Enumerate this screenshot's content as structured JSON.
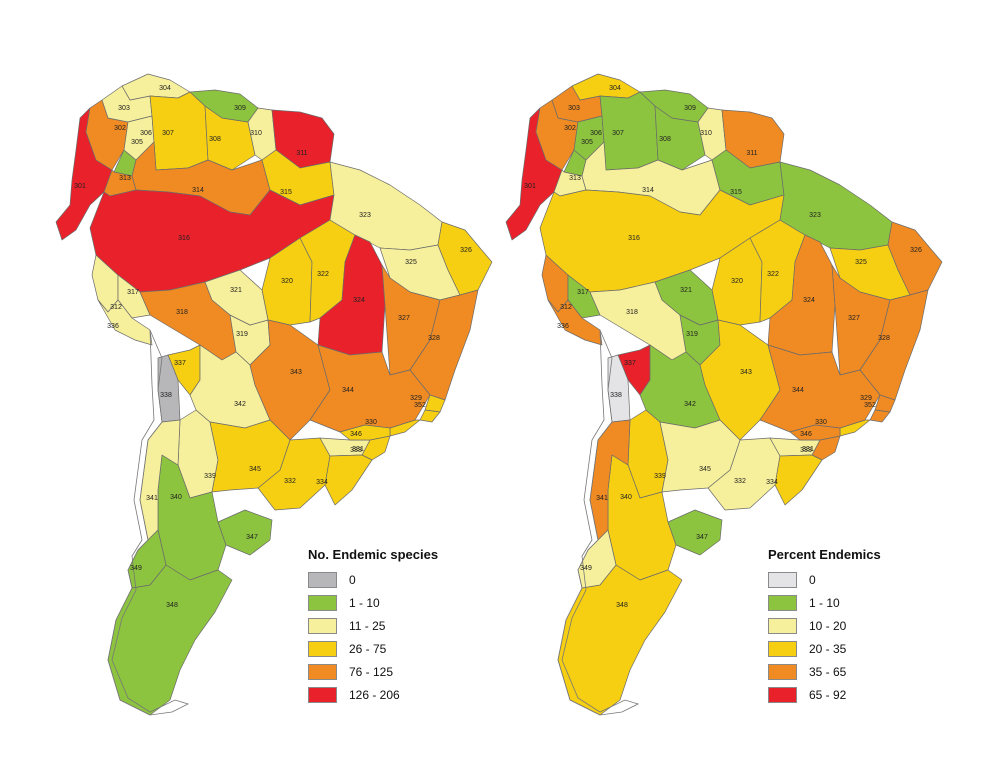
{
  "colors": {
    "grey": "#b7b7b9",
    "lightgrey": "#e4e4e6",
    "green": "#8cc43f",
    "lightyellow": "#f6ef9b",
    "yellow": "#f6cf12",
    "orange": "#f08a22",
    "red": "#e8212a"
  },
  "map_left": {
    "legend": {
      "title": "No. Endemic species",
      "items": [
        {
          "label": "0",
          "color": "#b7b7b9"
        },
        {
          "label": "1 - 10",
          "color": "#8cc43f"
        },
        {
          "label": "11 - 25",
          "color": "#f6ef9b"
        },
        {
          "label": "26 - 75",
          "color": "#f6cf12"
        },
        {
          "label": "76 - 125",
          "color": "#f08a22"
        },
        {
          "label": "126 - 206",
          "color": "#e8212a"
        }
      ]
    },
    "regions": [
      {
        "id": "301",
        "class": "red"
      },
      {
        "id": "302",
        "class": "orange"
      },
      {
        "id": "303",
        "class": "lightyellow"
      },
      {
        "id": "304",
        "class": "lightyellow"
      },
      {
        "id": "305",
        "class": "green"
      },
      {
        "id": "306",
        "class": "lightyellow"
      },
      {
        "id": "307",
        "class": "yellow"
      },
      {
        "id": "308",
        "class": "yellow"
      },
      {
        "id": "309",
        "class": "green"
      },
      {
        "id": "310",
        "class": "lightyellow"
      },
      {
        "id": "311",
        "class": "red"
      },
      {
        "id": "312",
        "class": "lightyellow"
      },
      {
        "id": "313",
        "class": "orange"
      },
      {
        "id": "314",
        "class": "orange"
      },
      {
        "id": "315",
        "class": "yellow"
      },
      {
        "id": "316",
        "class": "red"
      },
      {
        "id": "317",
        "class": "lightyellow"
      },
      {
        "id": "318",
        "class": "orange"
      },
      {
        "id": "319",
        "class": "lightyellow"
      },
      {
        "id": "320",
        "class": "yellow"
      },
      {
        "id": "321",
        "class": "lightyellow"
      },
      {
        "id": "322",
        "class": "yellow"
      },
      {
        "id": "323",
        "class": "lightyellow"
      },
      {
        "id": "324",
        "class": "red"
      },
      {
        "id": "325",
        "class": "lightyellow"
      },
      {
        "id": "326",
        "class": "yellow"
      },
      {
        "id": "327",
        "class": "orange"
      },
      {
        "id": "328",
        "class": "orange"
      },
      {
        "id": "329",
        "class": "yellow"
      },
      {
        "id": "330",
        "class": "yellow"
      },
      {
        "id": "331",
        "class": "yellow"
      },
      {
        "id": "332",
        "class": "yellow"
      },
      {
        "id": "333",
        "class": "lightyellow"
      },
      {
        "id": "334",
        "class": "yellow"
      },
      {
        "id": "336",
        "class": "lightyellow"
      },
      {
        "id": "337",
        "class": "yellow"
      },
      {
        "id": "338",
        "class": "grey"
      },
      {
        "id": "339",
        "class": "lightyellow"
      },
      {
        "id": "340",
        "class": "green"
      },
      {
        "id": "341",
        "class": "lightyellow"
      },
      {
        "id": "342",
        "class": "lightyellow"
      },
      {
        "id": "343",
        "class": "orange"
      },
      {
        "id": "344",
        "class": "orange"
      },
      {
        "id": "345",
        "class": "yellow"
      },
      {
        "id": "346",
        "class": "yellow"
      },
      {
        "id": "347",
        "class": "green"
      },
      {
        "id": "348",
        "class": "green"
      },
      {
        "id": "349",
        "class": "green"
      },
      {
        "id": "352",
        "class": "yellow"
      }
    ]
  },
  "map_right": {
    "legend": {
      "title": "Percent Endemics",
      "items": [
        {
          "label": "0",
          "color": "#e4e4e6"
        },
        {
          "label": "1 - 10",
          "color": "#8cc43f"
        },
        {
          "label": "10 - 20",
          "color": "#f6ef9b"
        },
        {
          "label": "20 - 35",
          "color": "#f6cf12"
        },
        {
          "label": "35 - 65",
          "color": "#f08a22"
        },
        {
          "label": "65 - 92",
          "color": "#e8212a"
        }
      ]
    },
    "regions": [
      {
        "id": "301",
        "class": "red"
      },
      {
        "id": "302",
        "class": "orange"
      },
      {
        "id": "303",
        "class": "orange"
      },
      {
        "id": "304",
        "class": "yellow"
      },
      {
        "id": "305",
        "class": "green"
      },
      {
        "id": "306",
        "class": "green"
      },
      {
        "id": "307",
        "class": "green"
      },
      {
        "id": "308",
        "class": "green"
      },
      {
        "id": "309",
        "class": "green"
      },
      {
        "id": "310",
        "class": "lightyellow"
      },
      {
        "id": "311",
        "class": "orange"
      },
      {
        "id": "312",
        "class": "orange"
      },
      {
        "id": "313",
        "class": "lightyellow"
      },
      {
        "id": "314",
        "class": "lightyellow"
      },
      {
        "id": "315",
        "class": "green"
      },
      {
        "id": "316",
        "class": "yellow"
      },
      {
        "id": "317",
        "class": "green"
      },
      {
        "id": "318",
        "class": "lightyellow"
      },
      {
        "id": "319",
        "class": "green"
      },
      {
        "id": "320",
        "class": "yellow"
      },
      {
        "id": "321",
        "class": "green"
      },
      {
        "id": "322",
        "class": "yellow"
      },
      {
        "id": "323",
        "class": "green"
      },
      {
        "id": "324",
        "class": "orange"
      },
      {
        "id": "325",
        "class": "yellow"
      },
      {
        "id": "326",
        "class": "orange"
      },
      {
        "id": "327",
        "class": "orange"
      },
      {
        "id": "328",
        "class": "orange"
      },
      {
        "id": "329",
        "class": "orange"
      },
      {
        "id": "330",
        "class": "yellow"
      },
      {
        "id": "331",
        "class": "orange"
      },
      {
        "id": "332",
        "class": "lightyellow"
      },
      {
        "id": "333",
        "class": "lightyellow"
      },
      {
        "id": "334",
        "class": "yellow"
      },
      {
        "id": "336",
        "class": "orange"
      },
      {
        "id": "337",
        "class": "red"
      },
      {
        "id": "338",
        "class": "lightgrey"
      },
      {
        "id": "339",
        "class": "yellow"
      },
      {
        "id": "340",
        "class": "yellow"
      },
      {
        "id": "341",
        "class": "orange"
      },
      {
        "id": "342",
        "class": "green"
      },
      {
        "id": "343",
        "class": "yellow"
      },
      {
        "id": "344",
        "class": "orange"
      },
      {
        "id": "345",
        "class": "lightyellow"
      },
      {
        "id": "346",
        "class": "orange"
      },
      {
        "id": "347",
        "class": "green"
      },
      {
        "id": "348",
        "class": "yellow"
      },
      {
        "id": "349",
        "class": "lightyellow"
      },
      {
        "id": "352",
        "class": "orange"
      }
    ]
  }
}
